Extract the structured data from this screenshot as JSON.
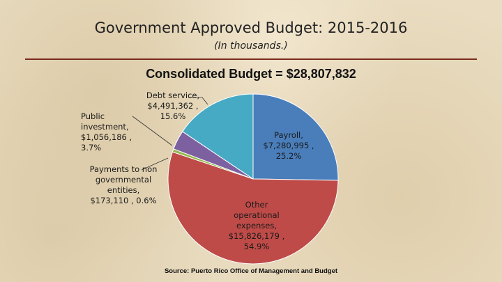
{
  "chart_data": {
    "type": "pie",
    "title": "Government Approved Budget:  2015-2016",
    "subtitle": "(In thousands.)",
    "heading": "Consolidated Budget  =  $28,807,832",
    "source": "Source:  Puerto Rico Office of Management and Budget",
    "slices": [
      {
        "label": "Payroll,",
        "value_text": "$7,280,995 ,",
        "percent_text": "25.2%",
        "value": 7280995,
        "color": "#4a7ebb"
      },
      {
        "label": "Other operational expenses,",
        "value_text": "$15,826,179 ,",
        "percent_text": "54.9%",
        "value": 15826179,
        "color": "#be4b48"
      },
      {
        "label": "Payments to non governmental entities,",
        "value_text": "$173,110 , 0.6%",
        "percent_text": "",
        "value": 173110,
        "color": "#98b954"
      },
      {
        "label": "Public investment,",
        "value_text": "$1,056,186 ,",
        "percent_text": "3.7%",
        "value": 1056186,
        "color": "#7d60a0"
      },
      {
        "label": "Debt service,",
        "value_text": "$4,491,362 ,",
        "percent_text": "15.6%",
        "value": 4491362,
        "color": "#46aac4"
      }
    ]
  }
}
